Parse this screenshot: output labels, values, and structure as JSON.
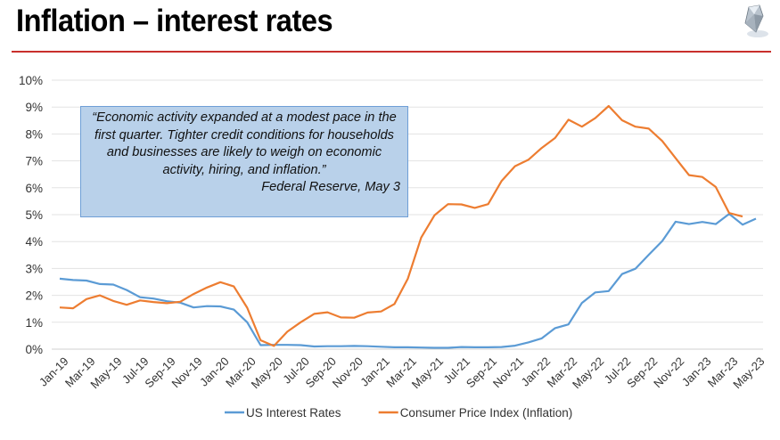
{
  "slide": {
    "title": "Inflation – interest rates",
    "logo_icon": "diamond-icon",
    "rule_color": "#c9302c"
  },
  "callout": {
    "quote": "“Economic activity expanded at a modest pace in the first quarter. Tighter credit conditions for households and businesses are likely to weigh on economic activity, hiring, and inflation.”",
    "source": "Federal Reserve, May 3",
    "fill_color": "#b9d1ea"
  },
  "chart_data": {
    "type": "line",
    "title": "",
    "xlabel": "",
    "ylabel": "",
    "ylim": [
      0,
      10
    ],
    "yticks": [
      "0%",
      "1%",
      "2%",
      "3%",
      "4%",
      "5%",
      "6%",
      "7%",
      "8%",
      "9%",
      "10%"
    ],
    "grid": true,
    "legend": "bottom",
    "x": [
      "Jan-19",
      "Feb-19",
      "Mar-19",
      "Apr-19",
      "May-19",
      "Jun-19",
      "Jul-19",
      "Aug-19",
      "Sep-19",
      "Oct-19",
      "Nov-19",
      "Dec-19",
      "Jan-20",
      "Feb-20",
      "Mar-20",
      "Apr-20",
      "May-20",
      "Jun-20",
      "Jul-20",
      "Aug-20",
      "Sep-20",
      "Oct-20",
      "Nov-20",
      "Dec-20",
      "Jan-21",
      "Feb-21",
      "Mar-21",
      "Apr-21",
      "May-21",
      "Jun-21",
      "Jul-21",
      "Aug-21",
      "Sep-21",
      "Oct-21",
      "Nov-21",
      "Dec-21",
      "Jan-22",
      "Feb-22",
      "Mar-22",
      "Apr-22",
      "May-22",
      "Jun-22",
      "Jul-22",
      "Aug-22",
      "Sep-22",
      "Oct-22",
      "Nov-22",
      "Dec-22",
      "Jan-23",
      "Feb-23",
      "Mar-23",
      "Apr-23",
      "May-23"
    ],
    "xtick_labels": [
      "Jan-19",
      "Mar-19",
      "May-19",
      "Jul-19",
      "Sep-19",
      "Nov-19",
      "Jan-20",
      "Mar-20",
      "May-20",
      "Jul-20",
      "Sep-20",
      "Nov-20",
      "Jan-21",
      "Mar-21",
      "May-21",
      "Jul-21",
      "Sep-21",
      "Nov-21",
      "Jan-22",
      "Mar-22",
      "May-22",
      "Jul-22",
      "Sep-22",
      "Nov-22",
      "Jan-23",
      "Mar-23",
      "May-23"
    ],
    "series": [
      {
        "name": "US Interest Rates",
        "color": "#5b9bd5",
        "values": [
          2.62,
          2.57,
          2.55,
          2.42,
          2.4,
          2.2,
          1.93,
          1.88,
          1.78,
          1.73,
          1.55,
          1.6,
          1.59,
          1.47,
          1.0,
          0.15,
          0.16,
          0.16,
          0.15,
          0.1,
          0.11,
          0.11,
          0.12,
          0.11,
          0.09,
          0.07,
          0.07,
          0.06,
          0.05,
          0.05,
          0.08,
          0.07,
          0.07,
          0.08,
          0.13,
          0.25,
          0.4,
          0.78,
          0.92,
          1.72,
          2.11,
          2.16,
          2.79,
          2.99,
          3.51,
          4.02,
          4.74,
          4.65,
          4.73,
          4.65,
          5.03,
          4.63,
          4.85
        ]
      },
      {
        "name": "Consumer Price Index (Inflation)",
        "color": "#ed7d31",
        "values": [
          1.55,
          1.52,
          1.86,
          2.0,
          1.79,
          1.65,
          1.81,
          1.75,
          1.71,
          1.76,
          2.05,
          2.29,
          2.49,
          2.33,
          1.54,
          0.33,
          0.12,
          0.65,
          1.0,
          1.31,
          1.37,
          1.18,
          1.17,
          1.36,
          1.4,
          1.68,
          2.62,
          4.15,
          4.98,
          5.39,
          5.38,
          5.25,
          5.39,
          6.25,
          6.8,
          7.04,
          7.48,
          7.85,
          8.53,
          8.27,
          8.59,
          9.04,
          8.51,
          8.27,
          8.2,
          7.74,
          7.1,
          6.47,
          6.4,
          6.03,
          5.06,
          4.93,
          null
        ]
      }
    ]
  }
}
